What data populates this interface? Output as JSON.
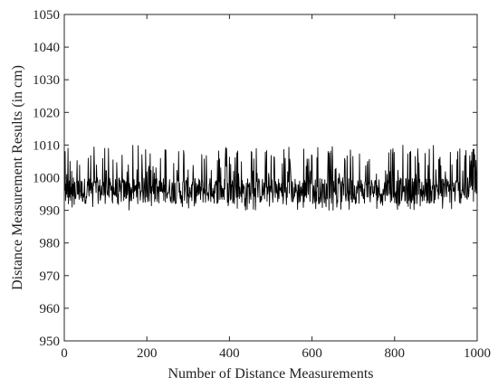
{
  "chart_data": {
    "type": "line",
    "title": "",
    "xlabel": "Number of Distance Measurements",
    "ylabel": "Distance Measurement Results (in cm)",
    "xlim": [
      0,
      1000
    ],
    "ylim": [
      950,
      1050
    ],
    "x_ticks": [
      0,
      200,
      400,
      600,
      800,
      1000
    ],
    "y_ticks": [
      950,
      960,
      970,
      980,
      990,
      1000,
      1010,
      1020,
      1030,
      1040,
      1050
    ],
    "x_tick_labels": [
      "0",
      "200",
      "400",
      "600",
      "800",
      "1000"
    ],
    "y_tick_labels": [
      "950",
      "960",
      "970",
      "980",
      "990",
      "1000",
      "1010",
      "1020",
      "1030",
      "1040",
      "1050"
    ],
    "grid": false,
    "legend": "none",
    "series": [
      {
        "line_color": "#000000",
        "x_start": 1,
        "x_step": 1,
        "count": 1000,
        "baseline_range": [
          991,
          1002
        ],
        "spike_max": 1010,
        "spike_min": 990,
        "values_sample": [
          996,
          1008,
          993,
          998,
          995,
          1001,
          994,
          997,
          1009,
          992,
          996,
          999,
          994,
          1005,
          993,
          997,
          995,
          1002,
          991,
          998
        ]
      }
    ]
  }
}
